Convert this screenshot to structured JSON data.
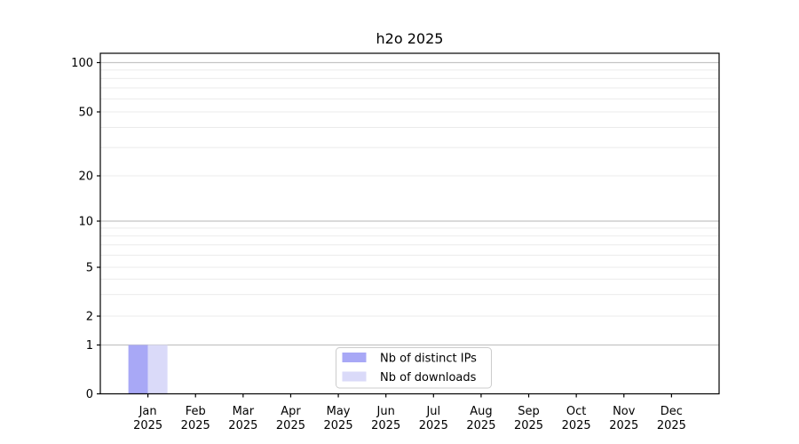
{
  "chart_data": {
    "type": "bar",
    "title": "h2o 2025",
    "categories": [
      "Jan",
      "Feb",
      "Mar",
      "Apr",
      "May",
      "Jun",
      "Jul",
      "Aug",
      "Sep",
      "Oct",
      "Nov",
      "Dec"
    ],
    "category_year": "2025",
    "series": [
      {
        "name": "Nb of distinct IPs",
        "color": "#a8a8f6",
        "values": [
          1,
          0,
          0,
          0,
          0,
          0,
          0,
          0,
          0,
          0,
          0,
          0
        ]
      },
      {
        "name": "Nb of downloads",
        "color": "#dadaf9",
        "values": [
          1,
          0,
          0,
          0,
          0,
          0,
          0,
          0,
          0,
          0,
          0,
          0
        ]
      }
    ],
    "yscale": "symlog",
    "yticks": [
      0,
      1,
      2,
      5,
      10,
      20,
      50,
      100
    ],
    "ylim": [
      0,
      110
    ],
    "xlabel": "",
    "ylabel": "",
    "grid": "horizontal",
    "legend_position": "lower-center",
    "colors": {
      "major_grid": "#c4c4c4",
      "minor_grid": "#ebebeb",
      "spine": "#000000",
      "legend_border": "#cccccc",
      "background": "#ffffff"
    }
  }
}
